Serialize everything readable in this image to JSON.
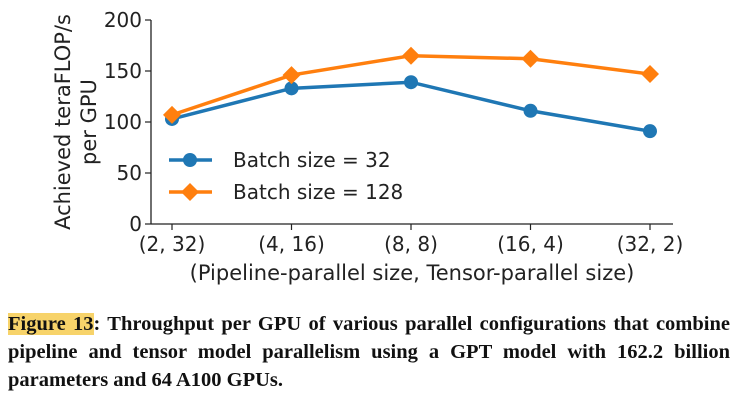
{
  "chart_data": {
    "type": "line",
    "title": "",
    "xlabel": "(Pipeline-parallel size, Tensor-parallel size)",
    "ylabel": "Achieved teraFLOP/s per GPU",
    "ylabel_lines": [
      "Achieved teraFLOP/s",
      "per GPU"
    ],
    "categories": [
      "(2, 32)",
      "(4, 16)",
      "(8, 8)",
      "(16, 4)",
      "(32, 2)"
    ],
    "ylim": [
      0,
      200
    ],
    "yticks": [
      0,
      50,
      100,
      150,
      200
    ],
    "grid": false,
    "legend_placement": "lower-left",
    "series": [
      {
        "name": "Batch size = 32",
        "values": [
          103,
          133,
          139,
          111,
          91
        ],
        "color": "#1f77b4",
        "marker": "circle"
      },
      {
        "name": "Batch size = 128",
        "values": [
          107,
          146,
          165,
          162,
          147
        ],
        "color": "#ff7f0e",
        "marker": "diamond"
      }
    ]
  },
  "caption": {
    "label": "Figure 13",
    "text": ": Throughput per GPU of various parallel configurations that combine pipeline and tensor model parallelism using a GPT model with 162.2 billion parameters and 64 A100 GPUs."
  }
}
